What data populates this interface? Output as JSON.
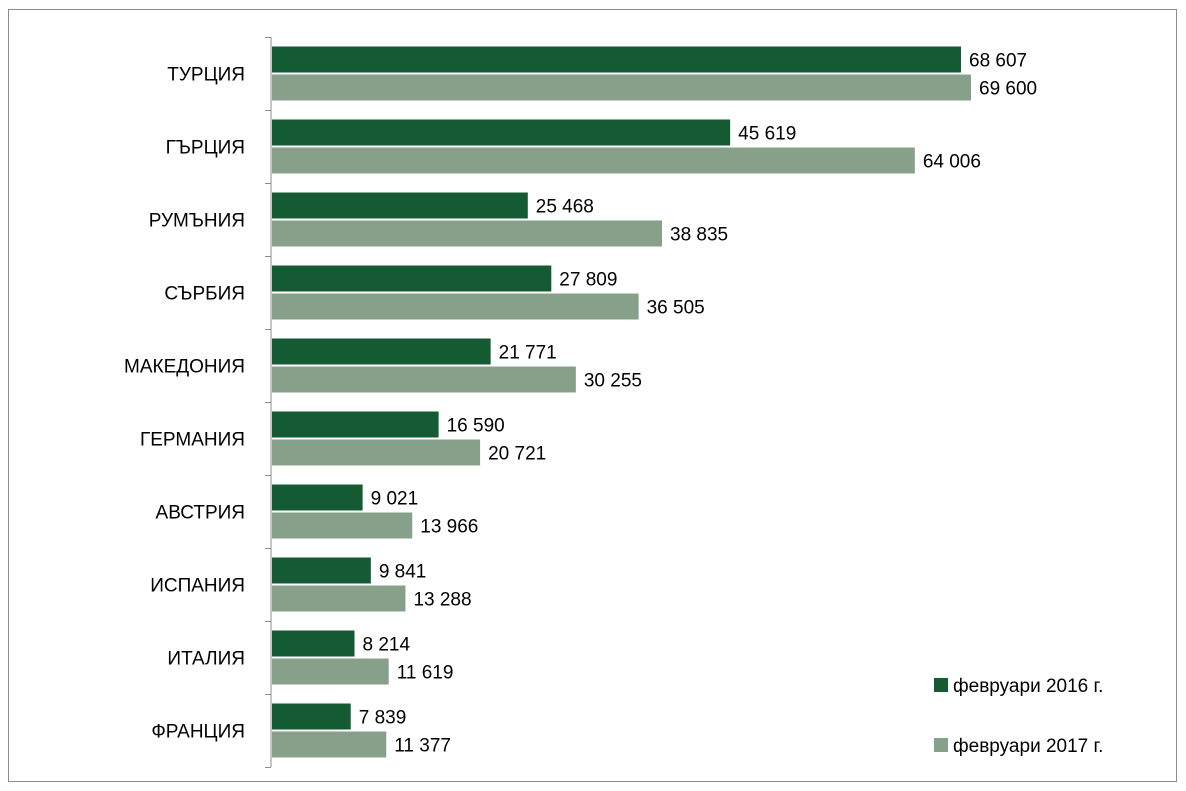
{
  "chart_data": {
    "type": "bar",
    "orientation": "horizontal",
    "categories": [
      "ТУРЦИЯ",
      "ГЪРЦИЯ",
      "РУМЪНИЯ",
      "СЪРБИЯ",
      "МАКЕДОНИЯ",
      "ГЕРМАНИЯ",
      "АВСТРИЯ",
      "ИСПАНИЯ",
      "ИТАЛИЯ",
      "ФРАНЦИЯ"
    ],
    "series": [
      {
        "name": "февруари 2016 г.",
        "color": "#145a32",
        "values": [
          68607,
          45619,
          25468,
          27809,
          21771,
          16590,
          9021,
          9841,
          8214,
          7839
        ],
        "labels": [
          "68 607",
          "45 619",
          "25 468",
          "27 809",
          "21 771",
          "16 590",
          "9 021",
          "9 841",
          "8 214",
          "7 839"
        ]
      },
      {
        "name": "февруари 2017 г.",
        "color": "#87a08a",
        "values": [
          69600,
          64006,
          38835,
          36505,
          30255,
          20721,
          13966,
          13288,
          11619,
          11377
        ],
        "labels": [
          "69 600",
          "64 006",
          "38 835",
          "36 505",
          "30 255",
          "20 721",
          "13 966",
          "13 288",
          "11 619",
          "11 377"
        ]
      }
    ],
    "legend_position": "bottom-right",
    "grid": false
  }
}
